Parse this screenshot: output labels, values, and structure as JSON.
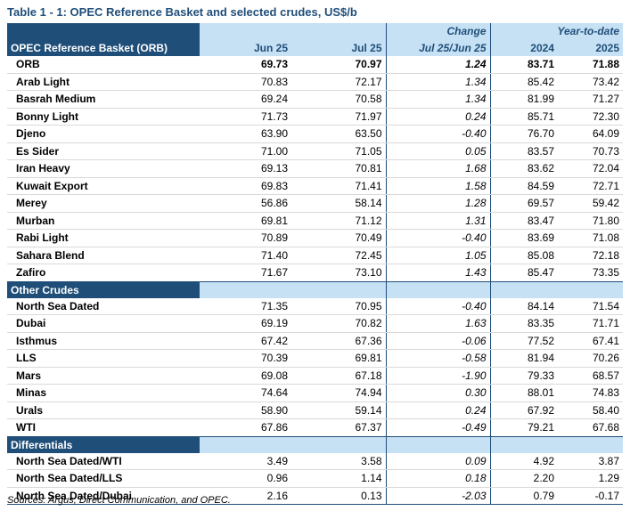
{
  "title": "Table 1 - 1: OPEC Reference Basket and selected crudes, US$/b",
  "header": {
    "change_group": "Change",
    "ytd_group": "Year-to-date",
    "first_col": "OPEC Reference Basket (ORB)",
    "columns": [
      "Jun 25",
      "Jul 25",
      "Jul 25/Jun 25",
      "2024",
      "2025"
    ]
  },
  "sections": [
    {
      "label": "",
      "rows": [
        {
          "name": "ORB",
          "values": [
            "69.73",
            "70.97",
            "1.24",
            "83.71",
            "71.88"
          ]
        },
        {
          "name": "Arab Light",
          "values": [
            "70.83",
            "72.17",
            "1.34",
            "85.42",
            "73.42"
          ]
        },
        {
          "name": "Basrah Medium",
          "values": [
            "69.24",
            "70.58",
            "1.34",
            "81.99",
            "71.27"
          ]
        },
        {
          "name": "Bonny Light",
          "values": [
            "71.73",
            "71.97",
            "0.24",
            "85.71",
            "72.30"
          ]
        },
        {
          "name": "Djeno",
          "values": [
            "63.90",
            "63.50",
            "-0.40",
            "76.70",
            "64.09"
          ]
        },
        {
          "name": "Es Sider",
          "values": [
            "71.00",
            "71.05",
            "0.05",
            "83.57",
            "70.73"
          ]
        },
        {
          "name": "Iran Heavy",
          "values": [
            "69.13",
            "70.81",
            "1.68",
            "83.62",
            "72.04"
          ]
        },
        {
          "name": "Kuwait Export",
          "values": [
            "69.83",
            "71.41",
            "1.58",
            "84.59",
            "72.71"
          ]
        },
        {
          "name": "Merey",
          "values": [
            "56.86",
            "58.14",
            "1.28",
            "69.57",
            "59.42"
          ]
        },
        {
          "name": "Murban",
          "values": [
            "69.81",
            "71.12",
            "1.31",
            "83.47",
            "71.80"
          ]
        },
        {
          "name": "Rabi Light",
          "values": [
            "70.89",
            "70.49",
            "-0.40",
            "83.69",
            "71.08"
          ]
        },
        {
          "name": "Sahara Blend",
          "values": [
            "71.40",
            "72.45",
            "1.05",
            "85.08",
            "72.18"
          ]
        },
        {
          "name": "Zafiro",
          "values": [
            "71.67",
            "73.10",
            "1.43",
            "85.47",
            "73.35"
          ]
        }
      ]
    },
    {
      "label": "Other Crudes",
      "rows": [
        {
          "name": "North Sea Dated",
          "values": [
            "71.35",
            "70.95",
            "-0.40",
            "84.14",
            "71.54"
          ]
        },
        {
          "name": "Dubai",
          "values": [
            "69.19",
            "70.82",
            "1.63",
            "83.35",
            "71.71"
          ]
        },
        {
          "name": "Isthmus",
          "values": [
            "67.42",
            "67.36",
            "-0.06",
            "77.52",
            "67.41"
          ]
        },
        {
          "name": "LLS",
          "values": [
            "70.39",
            "69.81",
            "-0.58",
            "81.94",
            "70.26"
          ]
        },
        {
          "name": "Mars",
          "values": [
            "69.08",
            "67.18",
            "-1.90",
            "79.33",
            "68.57"
          ]
        },
        {
          "name": "Minas",
          "values": [
            "74.64",
            "74.94",
            "0.30",
            "88.01",
            "74.83"
          ]
        },
        {
          "name": "Urals",
          "values": [
            "58.90",
            "59.14",
            "0.24",
            "67.92",
            "58.40"
          ]
        },
        {
          "name": "WTI",
          "values": [
            "67.86",
            "67.37",
            "-0.49",
            "79.21",
            "67.68"
          ]
        }
      ]
    },
    {
      "label": "Differentials",
      "rows": [
        {
          "name": "North Sea Dated/WTI",
          "values": [
            "3.49",
            "3.58",
            "0.09",
            "4.92",
            "3.87"
          ]
        },
        {
          "name": "North Sea Dated/LLS",
          "values": [
            "0.96",
            "1.14",
            "0.18",
            "2.20",
            "1.29"
          ]
        },
        {
          "name": "North Sea Dated/Dubai",
          "values": [
            "2.16",
            "0.13",
            "-2.03",
            "0.79",
            "-0.17"
          ]
        }
      ]
    }
  ],
  "sources": "Sources:  Argus, Direct Communication, and OPEC."
}
